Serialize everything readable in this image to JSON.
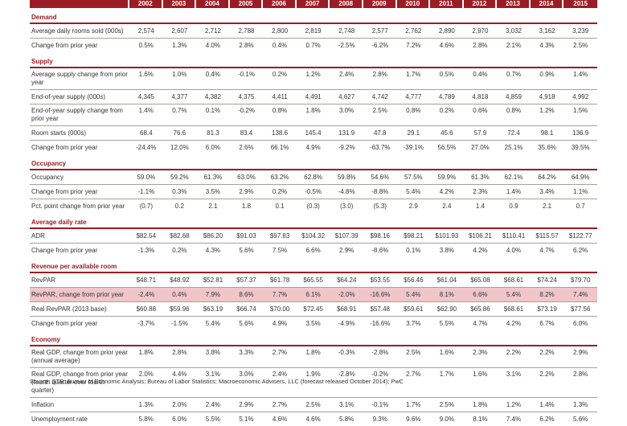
{
  "table": {
    "years": [
      "2002",
      "2003",
      "2004",
      "2005",
      "2006",
      "2007",
      "2008",
      "2009",
      "2010",
      "2011",
      "2012",
      "2013",
      "2014",
      "2015"
    ],
    "accent_color": "#9b1c24",
    "highlight_color": "#f0c6c9",
    "sections": [
      {
        "title": "Demand",
        "rows": [
          {
            "label": "Average daily rooms sold (000s)",
            "values": [
              "2,574",
              "2,607",
              "2,712",
              "2,788",
              "2,800",
              "2,819",
              "2,748",
              "2,577",
              "2,762",
              "2,890",
              "2,970",
              "3,032",
              "3,162",
              "3,239"
            ]
          },
          {
            "label": "Change from prior year",
            "values": [
              "0.5%",
              "1.3%",
              "4.0%",
              "2.8%",
              "0.4%",
              "0.7%",
              "-2.5%",
              "-6.2%",
              "7.2%",
              "4.6%",
              "2.8%",
              "2.1%",
              "4.3%",
              "2.5%"
            ]
          }
        ]
      },
      {
        "title": "Supply",
        "rows": [
          {
            "label": "Average supply change from prior year",
            "values": [
              "1.6%",
              "1.0%",
              "0.4%",
              "-0.1%",
              "0.2%",
              "1.2%",
              "2.4%",
              "2.8%",
              "1.7%",
              "0.5%",
              "0.4%",
              "0.7%",
              "0.9%",
              "1.4%"
            ]
          },
          {
            "label": "End-of-year supply (000s)",
            "values": [
              "4,345",
              "4,377",
              "4,382",
              "4,375",
              "4,411",
              "4,491",
              "4,627",
              "4,742",
              "4,777",
              "4,789",
              "4,818",
              "4,859",
              "4,918",
              "4,992"
            ]
          },
          {
            "label": "End-of-year supply change from prior year",
            "values": [
              "1.4%",
              "0.7%",
              "0.1%",
              "-0.2%",
              "0.8%",
              "1.8%",
              "3.0%",
              "2.5%",
              "0.8%",
              "0.2%",
              "0.6%",
              "0.8%",
              "1.2%",
              "1.5%"
            ]
          },
          {
            "label": "Room starts (000s)",
            "values": [
              "68.4",
              "76.6",
              "81.3",
              "83.4",
              "138.6",
              "145.4",
              "131.9",
              "47.8",
              "29.1",
              "45.6",
              "57.9",
              "72.4",
              "98.1",
              "136.9"
            ]
          },
          {
            "label": "Change from prior year",
            "values": [
              "-24.4%",
              "12.0%",
              "6.0%",
              "2.6%",
              "66.1%",
              "4.9%",
              "-9.2%",
              "-63.7%",
              "-39.1%",
              "56.5%",
              "27.0%",
              "25.1%",
              "35.6%",
              "39.5%"
            ]
          }
        ]
      },
      {
        "title": "Occupancy",
        "rows": [
          {
            "label": "Occupancy",
            "values": [
              "59.0%",
              "59.2%",
              "61.3%",
              "63.0%",
              "63.2%",
              "62.8%",
              "59.8%",
              "54.6%",
              "57.5%",
              "59.9%",
              "61.3%",
              "62.1%",
              "64.2%",
              "64.9%"
            ]
          },
          {
            "label": "Change from prior year",
            "values": [
              "-1.1%",
              "0.3%",
              "3.5%",
              "2.9%",
              "0.2%",
              "-0.5%",
              "-4.8%",
              "-8.8%",
              "5.4%",
              "4.2%",
              "2.3%",
              "1.4%",
              "3.4%",
              "1.1%"
            ]
          },
          {
            "label": "Pct. point change from prior year",
            "values": [
              "(0.7)",
              "0.2",
              "2.1",
              "1.8",
              "0.1",
              "(0.3)",
              "(3.0)",
              "(5.3)",
              "2.9",
              "2.4",
              "1.4",
              "0.9",
              "2.1",
              "0.7"
            ]
          }
        ]
      },
      {
        "title": "Average daily rate",
        "rows": [
          {
            "label": "ADR",
            "values": [
              "$82.54",
              "$82.68",
              "$86.20",
              "$91.03",
              "$97.83",
              "$104.32",
              "$107.39",
              "$98.16",
              "$98.21",
              "$101.93",
              "$106.21",
              "$110.41",
              "$115.57",
              "$122.77"
            ]
          },
          {
            "label": "Change from prior year",
            "values": [
              "-1.3%",
              "0.2%",
              "4.3%",
              "5.6%",
              "7.5%",
              "6.6%",
              "2.9%",
              "-8.6%",
              "0.1%",
              "3.8%",
              "4.2%",
              "4.0%",
              "4.7%",
              "6.2%"
            ]
          }
        ]
      },
      {
        "title": "Revenue per available room",
        "rows": [
          {
            "label": "RevPAR",
            "values": [
              "$48.71",
              "$48.92",
              "$52.81",
              "$57.37",
              "$61.78",
              "$65.55",
              "$64.24",
              "$53.55",
              "$56.46",
              "$61.04",
              "$65.08",
              "$68.61",
              "$74.24",
              "$79.70"
            ]
          },
          {
            "label": "RevPAR, change from prior year",
            "highlight": true,
            "values": [
              "-2.4%",
              "0.4%",
              "7.9%",
              "8.6%",
              "7.7%",
              "6.1%",
              "-2.0%",
              "-16.6%",
              "5.4%",
              "8.1%",
              "6.6%",
              "5.4%",
              "8.2%",
              "7.4%"
            ]
          },
          {
            "label": "Real RevPAR (2013 base)",
            "values": [
              "$60.88",
              "$59.96",
              "$63.19",
              "$66.74",
              "$70.00",
              "$72.45",
              "$68.91",
              "$57.48",
              "$59.61",
              "$62.90",
              "$65.86",
              "$68.61",
              "$73.19",
              "$77.56"
            ]
          },
          {
            "label": "Change from prior year",
            "values": [
              "-3.7%",
              "-1.5%",
              "5.4%",
              "5.6%",
              "4.9%",
              "3.5%",
              "-4.9%",
              "-16.6%",
              "3.7%",
              "5.5%",
              "4.7%",
              "4.2%",
              "6.7%",
              "6.0%"
            ]
          }
        ]
      },
      {
        "title": "Economy",
        "rows": [
          {
            "label": "Real GDP, change from prior year (annual average)",
            "values": [
              "1.8%",
              "2.8%",
              "3.8%",
              "3.3%",
              "2.7%",
              "1.8%",
              "-0.3%",
              "-2.8%",
              "2.5%",
              "1.6%",
              "2.3%",
              "2.2%",
              "2.2%",
              "2.9%"
            ]
          },
          {
            "label": "Real GDP, change from prior year (fourth quarter over fourth quarter)",
            "values": [
              "2.0%",
              "4.4%",
              "3.1%",
              "3.0%",
              "2.4%",
              "1.9%",
              "-2.8%",
              "-0.2%",
              "2.7%",
              "1.7%",
              "1.6%",
              "3.1%",
              "2.2%",
              "2.8%"
            ]
          },
          {
            "label": "Inflation",
            "values": [
              "1.3%",
              "2.0%",
              "2.4%",
              "2.9%",
              "2.7%",
              "2.5%",
              "3.1%",
              "-0.1%",
              "1.7%",
              "2.5%",
              "1.8%",
              "1.2%",
              "1.4%",
              "1.3%"
            ]
          },
          {
            "label": "Unemployment rate",
            "values": [
              "5.8%",
              "6.0%",
              "5.5%",
              "5.1%",
              "4.6%",
              "4.6%",
              "5.8%",
              "9.3%",
              "9.6%",
              "9.0%",
              "8.1%",
              "7.4%",
              "6.2%",
              "5.6%"
            ]
          }
        ]
      }
    ]
  },
  "source": "Source: STR; Bureau of Economic Analysis; Bureau of Labor Statistics; Macroeconomic Advisers, LLC (forecast released October 2014); PwC"
}
